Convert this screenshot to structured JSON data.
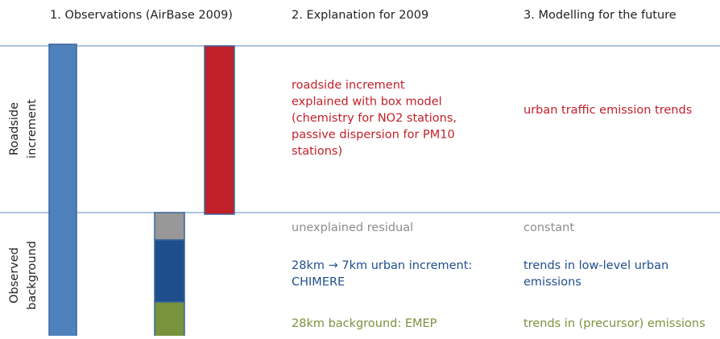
{
  "headers": [
    "1. Observations (AirBase 2009)",
    "2. Explanation for 2009",
    "3. Modelling for the future"
  ],
  "rows": [
    {
      "label": [
        "Roadside",
        "increment"
      ],
      "explanation": [
        "roadside increment",
        "explained with box model",
        "(chemistry for NO2 stations,",
        "passive dispersion for PM10",
        "stations)"
      ],
      "modelling": [
        "urban traffic emission trends"
      ]
    },
    {
      "label": [
        "Observed",
        "background"
      ],
      "parts": [
        {
          "explanation": [
            "unexplained residual"
          ],
          "modelling": [
            "constant"
          ]
        },
        {
          "explanation": [
            "28km → 7km urban increment:",
            "CHIMERE"
          ],
          "modelling": [
            "trends in low-level urban",
            "emissions"
          ]
        },
        {
          "explanation": [
            "28km background: EMEP"
          ],
          "modelling": [
            "trends in (precursor) emissions"
          ]
        }
      ]
    }
  ]
}
